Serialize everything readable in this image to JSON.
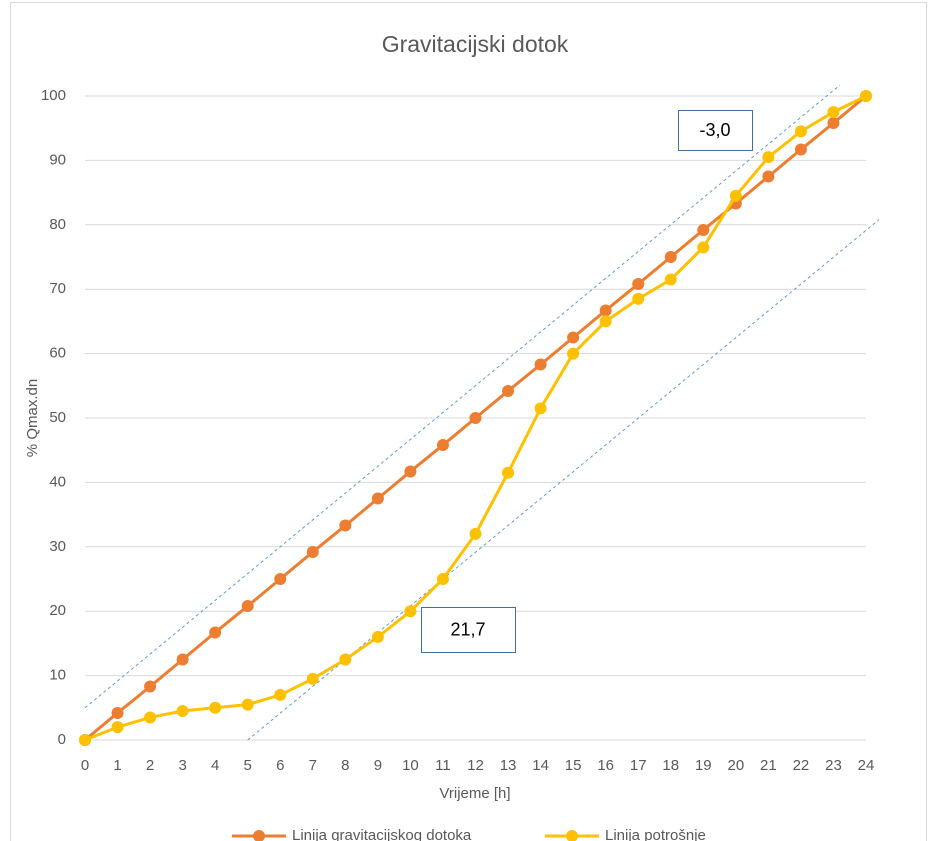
{
  "chart_data": {
    "type": "line",
    "title": "Gravitacijski dotok",
    "x_label": "Vrijeme [h]",
    "y_label": "% Qmax.dn",
    "x": [
      0,
      1,
      2,
      3,
      4,
      5,
      6,
      7,
      8,
      9,
      10,
      11,
      12,
      13,
      14,
      15,
      16,
      17,
      18,
      19,
      20,
      21,
      22,
      23,
      24
    ],
    "series": [
      {
        "name": "Linija gravitacijskog dotoka",
        "color": "#ed7d31",
        "values": [
          0,
          4.2,
          8.3,
          12.5,
          16.7,
          20.8,
          25,
          29.2,
          33.3,
          37.5,
          41.7,
          45.8,
          50,
          54.2,
          58.3,
          62.5,
          66.7,
          70.8,
          75,
          79.2,
          83.3,
          87.5,
          91.7,
          95.8,
          100
        ]
      },
      {
        "name": "Linija potrošnje",
        "color": "#ffc000",
        "values": [
          0,
          2,
          3.5,
          4.5,
          5,
          5.5,
          7,
          9.5,
          12.5,
          16,
          20,
          25,
          32,
          41.5,
          51.5,
          60,
          65,
          68.5,
          71.5,
          76.5,
          84.5,
          90.5,
          94.5,
          97.5,
          100
        ]
      }
    ],
    "reference_lines": [
      {
        "color": "#5b9bd5",
        "x": [
          0,
          23.2
        ],
        "y": [
          5,
          101.7
        ]
      },
      {
        "color": "#5b9bd5",
        "x": [
          5,
          24.4
        ],
        "y": [
          0,
          80.8
        ]
      }
    ],
    "annotations": [
      "-3,0",
      "21,7"
    ],
    "xlim": [
      0,
      24
    ],
    "xticks": [
      0,
      1,
      2,
      3,
      4,
      5,
      6,
      7,
      8,
      9,
      10,
      11,
      12,
      13,
      14,
      15,
      16,
      17,
      18,
      19,
      20,
      21,
      22,
      23,
      24
    ],
    "ylim": [
      0,
      100
    ],
    "yticks": [
      0,
      10,
      20,
      30,
      40,
      50,
      60,
      70,
      80,
      90,
      100
    ],
    "grid": true,
    "legend": "bottom"
  }
}
